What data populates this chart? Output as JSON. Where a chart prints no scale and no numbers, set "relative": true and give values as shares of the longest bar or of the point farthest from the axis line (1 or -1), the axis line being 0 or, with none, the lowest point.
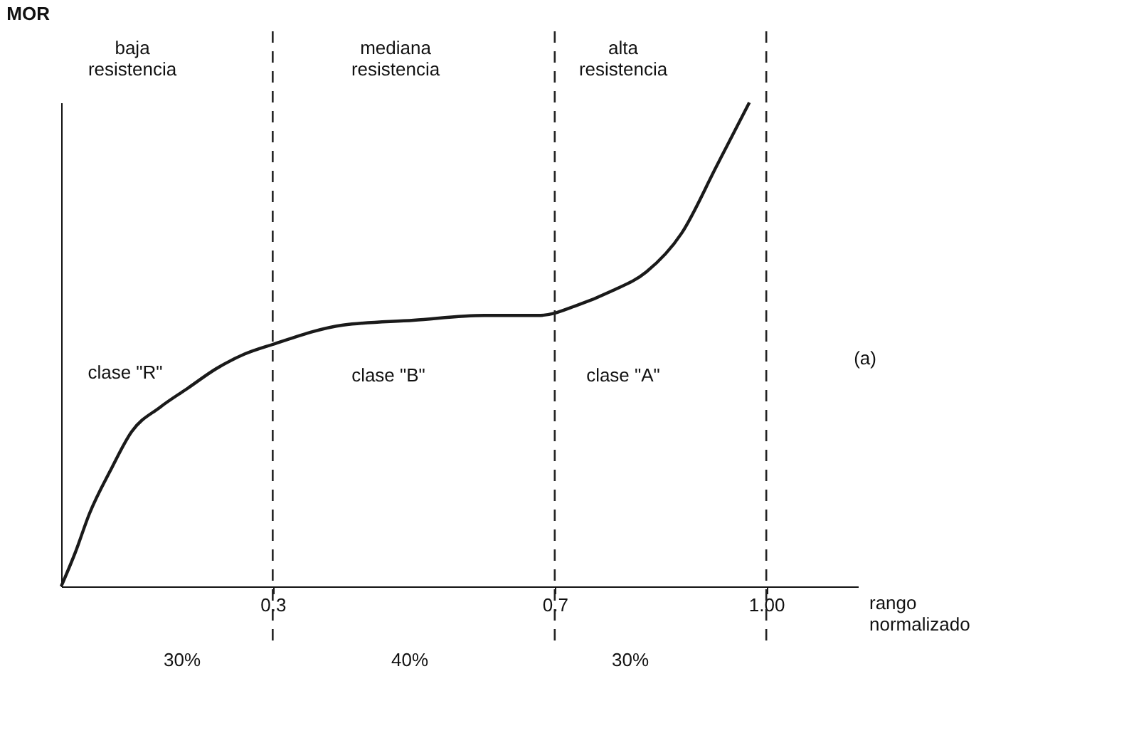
{
  "chart_data": {
    "type": "line",
    "relative": true,
    "xlabel": "rango normalizado",
    "ylabel": "MOR",
    "xlim": [
      0,
      1.13
    ],
    "xticks": [
      0.3,
      0.7,
      {
        "value": 1,
        "label": "1.00"
      }
    ],
    "tick_labels": "x",
    "grid": false,
    "marker": "none",
    "line_style": "solid",
    "series": [
      {
        "color": "#1a1a1a",
        "x": [
          0,
          0.02,
          0.04,
          0.07,
          0.1,
          0.14,
          0.18,
          0.22,
          0.26,
          0.3,
          0.4,
          0.5,
          0.6,
          0.68,
          0.73,
          0.78,
          0.83,
          0.88,
          0.93,
          0.976
        ],
        "values": [
          0,
          0.07,
          0.15,
          0.24,
          0.32,
          0.37,
          0.41,
          0.45,
          0.48,
          0.5,
          0.54,
          0.55,
          0.56,
          0.56,
          0.58,
          0.61,
          0.65,
          0.73,
          0.87,
          1
        ]
      }
    ],
    "ref_lines": [
      {
        "axis": "x",
        "value": 0.3,
        "line_style": "dashed"
      },
      {
        "axis": "x",
        "value": 0.7,
        "line_style": "dashed"
      },
      {
        "axis": "x",
        "value": 1,
        "line_style": "dashed"
      }
    ],
    "annotations": [
      "baja resistencia",
      "mediana resistencia",
      "alta resistencia",
      "clase \"R\"",
      "clase \"B\"",
      "clase \"A\"",
      "(a)",
      "30%",
      "40%",
      "30%"
    ]
  }
}
